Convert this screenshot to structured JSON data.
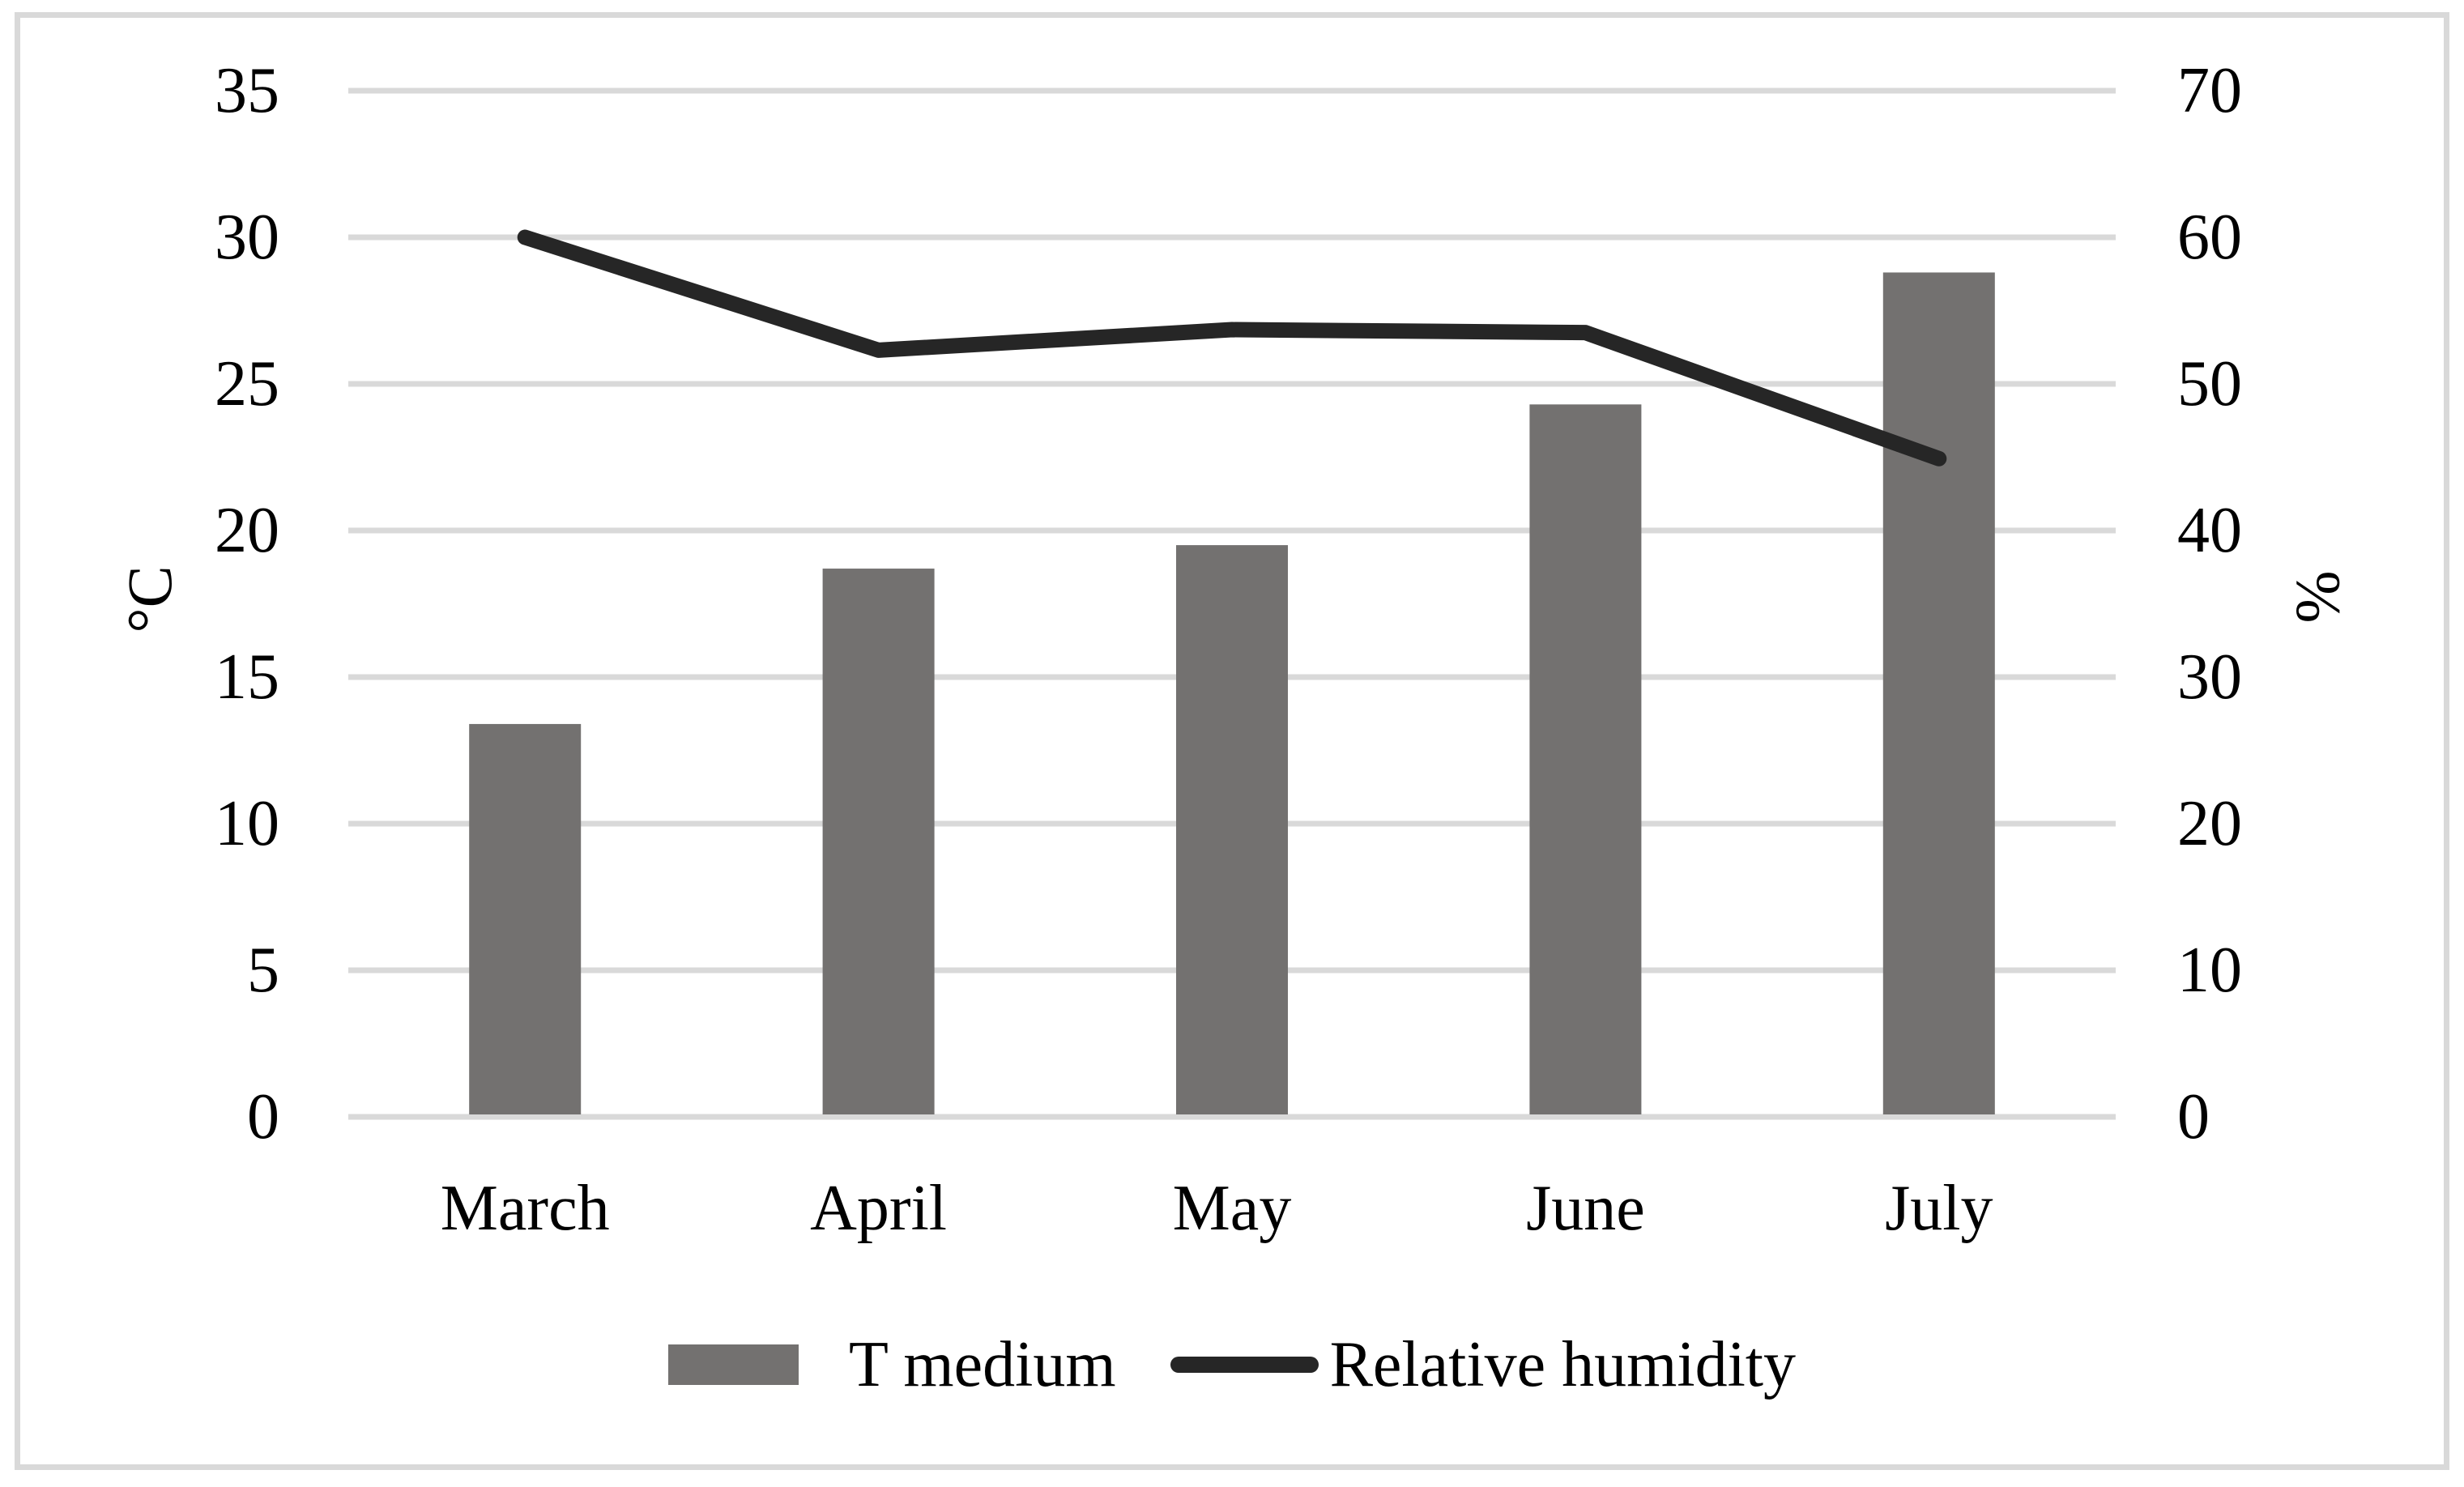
{
  "figure": {
    "left_axis_title": "°C",
    "right_axis_title": "%",
    "legend": [
      {
        "label": "T medium",
        "swatch": "gray-bar"
      },
      {
        "label": "Relative humidity",
        "swatch": "black-line"
      }
    ]
  },
  "chart_data": {
    "type": "bar+line combo",
    "categories": [
      "March",
      "April",
      "May",
      "June",
      "July"
    ],
    "series": [
      {
        "name": "T medium",
        "type": "bar",
        "axis": "left",
        "unit": "°C",
        "values": [
          13.4,
          18.7,
          19.5,
          24.3,
          28.8
        ]
      },
      {
        "name": "Relative humidity",
        "type": "line",
        "axis": "right",
        "unit": "%",
        "values": [
          60,
          52.3,
          53.7,
          53.5,
          44.9
        ]
      }
    ],
    "left_axis": {
      "label": "°C",
      "min": 0,
      "max": 35,
      "step": 5,
      "ticks": [
        "35",
        "30",
        "25",
        "20",
        "15",
        "10",
        "5",
        "0"
      ]
    },
    "right_axis": {
      "label": "%",
      "min": 0,
      "max": 70,
      "step": 10,
      "ticks": [
        "70",
        "60",
        "50",
        "40",
        "30",
        "20",
        "10",
        "0"
      ]
    },
    "grid": true,
    "legend_position": "bottom",
    "colors": {
      "bar": "#737170",
      "line": "#262626",
      "gridline": "#d9d9d9",
      "frame": "#d9d9d9",
      "text": "#000000"
    }
  }
}
